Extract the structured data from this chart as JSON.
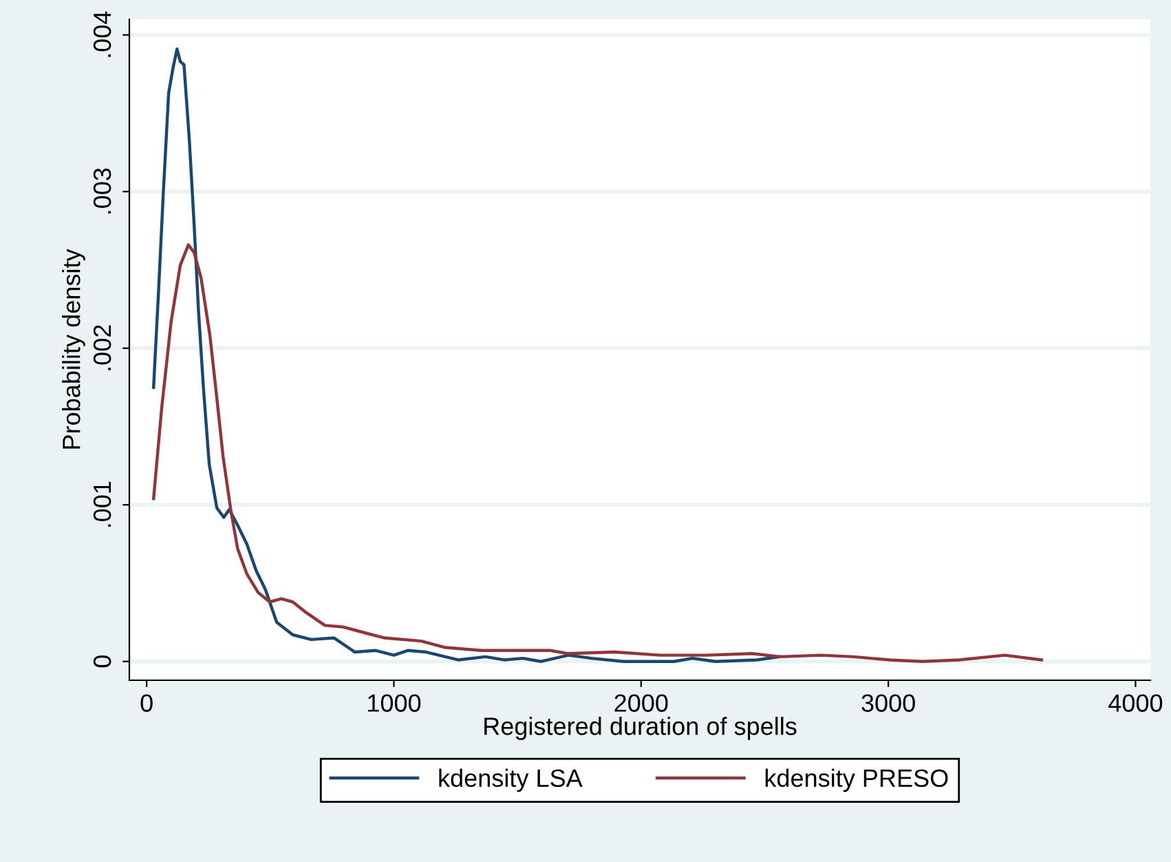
{
  "chart_data": {
    "type": "line",
    "xlabel": "Registered duration of spells",
    "ylabel": "Probability density",
    "xlim": [
      -70,
      4060
    ],
    "ylim": [
      -0.00012,
      0.0041
    ],
    "xticks": [
      0,
      1000,
      2000,
      3000,
      4000
    ],
    "yticks": [
      0,
      {
        "value": 0.001,
        "label": ".001"
      },
      {
        "value": 0.002,
        "label": ".002"
      },
      {
        "value": 0.003,
        "label": ".003"
      },
      {
        "value": 0.004,
        "label": ".004"
      }
    ],
    "grid": "y",
    "legend": "bottom",
    "marker": "none",
    "line_style": "solid",
    "series": [
      {
        "name": "kdensity LSA",
        "color": "#1a476f",
        "x": [
          28,
          48,
          67,
          89,
          108,
          123,
          136,
          151,
          173,
          192,
          210,
          230,
          253,
          284,
          312,
          334,
          368,
          405,
          443,
          480,
          526,
          591,
          666,
          758,
          842,
          927,
          1000,
          1056,
          1130,
          1260,
          1371,
          1446,
          1521,
          1596,
          1706,
          1799,
          1929,
          2133,
          2208,
          2301,
          2468,
          2561
        ],
        "values": [
          0.00175,
          0.00236,
          0.00298,
          0.00363,
          0.0038,
          0.00391,
          0.00383,
          0.00381,
          0.00332,
          0.00279,
          0.00223,
          0.00174,
          0.00126,
          0.00098,
          0.00092,
          0.00097,
          0.00087,
          0.00075,
          0.00058,
          0.00046,
          0.00025,
          0.00017,
          0.00014,
          0.00015,
          6e-05,
          7e-05,
          4e-05,
          7e-05,
          6e-05,
          1e-05,
          3e-05,
          1e-05,
          2e-05,
          0.0,
          4e-05,
          2e-05,
          0.0,
          0.0,
          2e-05,
          0.0,
          1e-05,
          3e-05
        ]
      },
      {
        "name": "kdensity PRESO",
        "color": "#90353b",
        "x": [
          28,
          61,
          99,
          136,
          169,
          192,
          220,
          256,
          284,
          309,
          340,
          368,
          405,
          451,
          498,
          545,
          591,
          647,
          721,
          795,
          889,
          963,
          1111,
          1204,
          1353,
          1521,
          1632,
          1706,
          1892,
          2078,
          2264,
          2450,
          2561,
          2728,
          2858,
          3006,
          3137,
          3286,
          3471,
          3620
        ],
        "values": [
          0.00104,
          0.00162,
          0.00217,
          0.00253,
          0.00266,
          0.00261,
          0.00245,
          0.00208,
          0.00168,
          0.00131,
          0.00097,
          0.00072,
          0.00056,
          0.00044,
          0.00038,
          0.0004,
          0.00038,
          0.00031,
          0.00023,
          0.00022,
          0.00018,
          0.00015,
          0.00013,
          9e-05,
          7e-05,
          7e-05,
          7e-05,
          5e-05,
          6e-05,
          4e-05,
          4e-05,
          5e-05,
          3e-05,
          4e-05,
          3e-05,
          1e-05,
          0.0,
          1e-05,
          4e-05,
          1e-05
        ]
      }
    ]
  }
}
